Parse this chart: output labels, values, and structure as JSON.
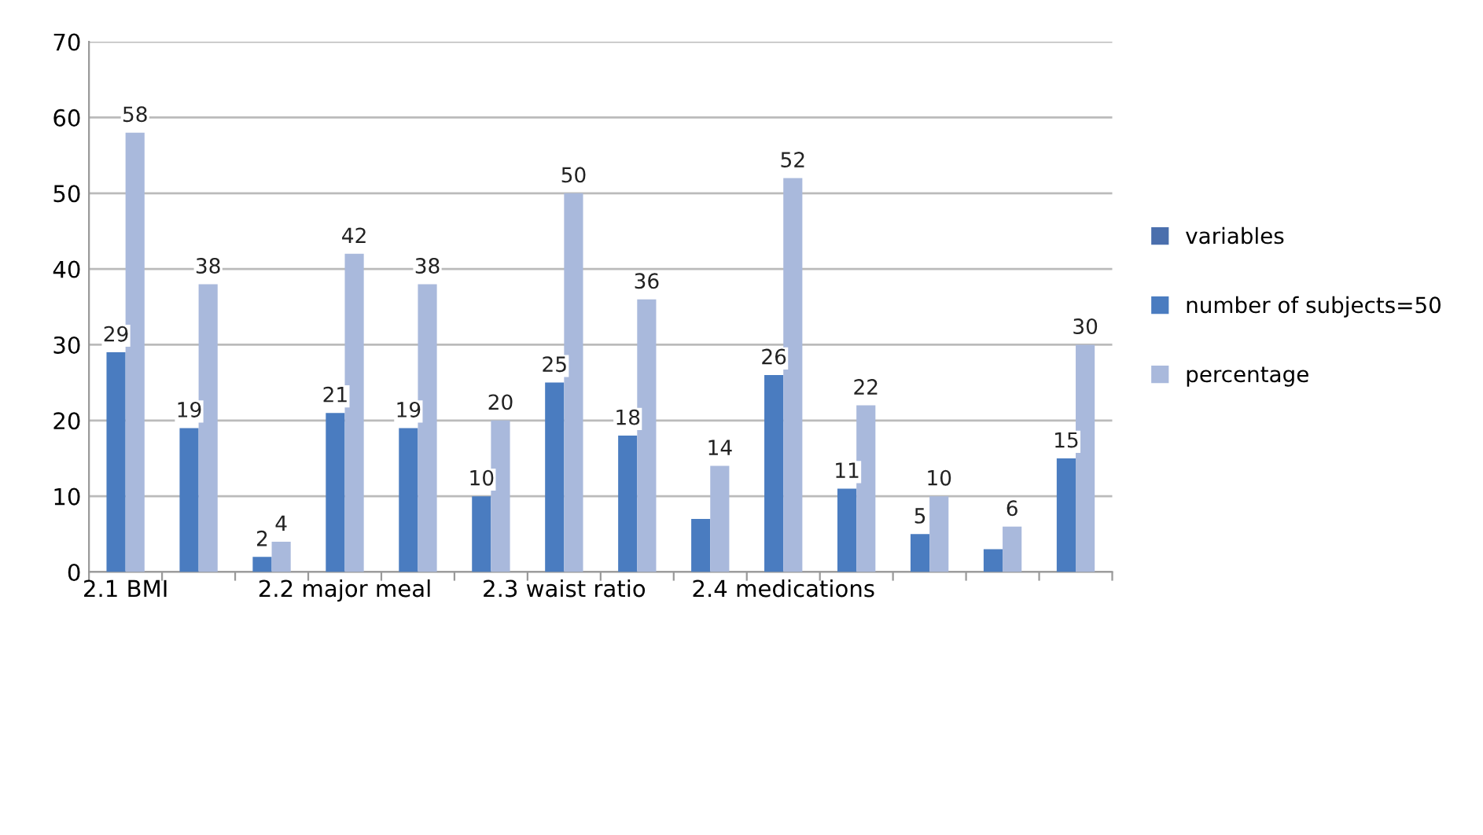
{
  "chart_data": {
    "type": "bar",
    "categories": [
      "2.1 BMI",
      null,
      null,
      "2.2 major meal",
      null,
      null,
      "2.3 waist ratio",
      null,
      null,
      "2.4 medications",
      null,
      null,
      null,
      null
    ],
    "series": [
      {
        "name": "variables",
        "color": "#4a6fad",
        "values": [
          null,
          null,
          null,
          null,
          null,
          null,
          null,
          null,
          null,
          null,
          null,
          null,
          null,
          null
        ]
      },
      {
        "name": "number of subjects=50",
        "color": "#4a7cc0",
        "values": [
          29,
          19,
          2,
          21,
          19,
          10,
          25,
          18,
          7,
          26,
          11,
          5,
          3,
          15
        ],
        "value_labels": [
          "29",
          "19",
          "2",
          "21",
          "19",
          "10",
          "25",
          "18",
          null,
          "26",
          "11",
          "5",
          null,
          "15"
        ]
      },
      {
        "name": "percentage",
        "color": "#a9b9dc",
        "values": [
          58,
          38,
          4,
          42,
          38,
          20,
          50,
          36,
          14,
          52,
          22,
          10,
          6,
          30
        ],
        "value_labels": [
          "58",
          "38",
          "4",
          "42",
          "38",
          "20",
          "50",
          "36",
          "14",
          "52",
          "22",
          "10",
          "6",
          "30"
        ]
      }
    ],
    "ylim": [
      0,
      70
    ],
    "yticks": [
      0,
      10,
      20,
      30,
      40,
      50,
      60,
      70
    ],
    "grid": "y",
    "legend": "right"
  }
}
